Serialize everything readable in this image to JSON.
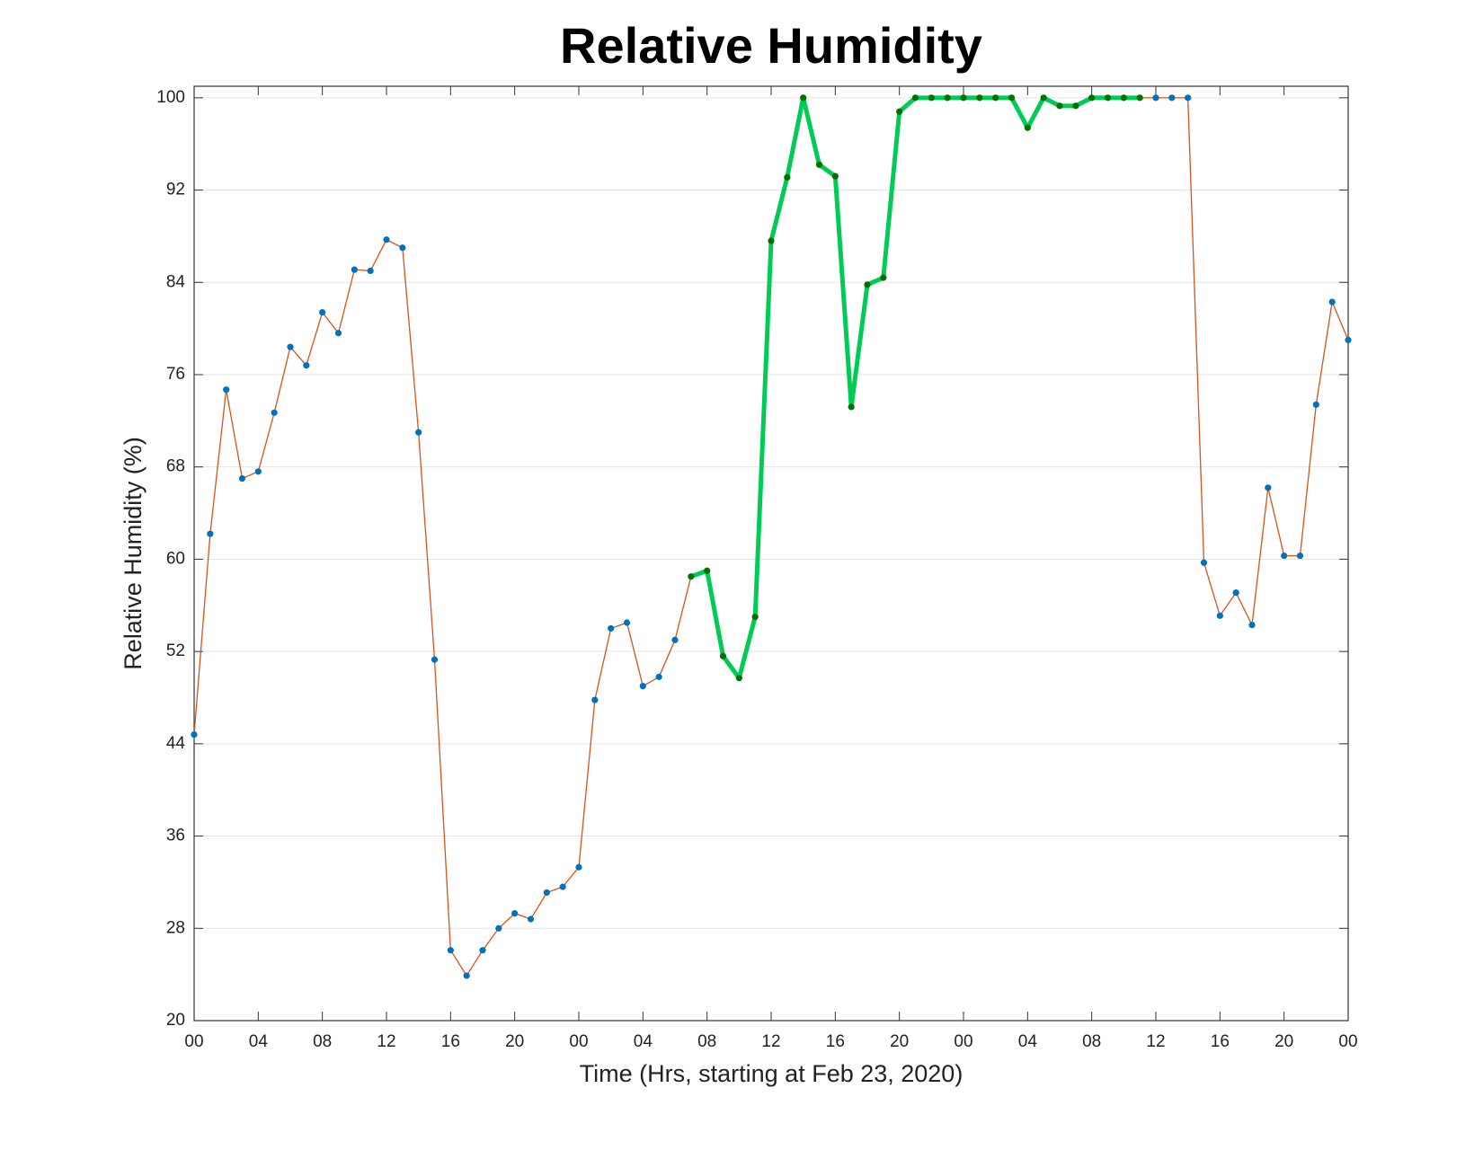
{
  "chart_data": {
    "type": "line",
    "title": "Relative Humidity",
    "xlabel": "Time (Hrs, starting at Feb 23, 2020)",
    "ylabel": "Relative Humidity (%)",
    "x": [
      0,
      1,
      2,
      3,
      4,
      5,
      6,
      7,
      8,
      9,
      10,
      11,
      12,
      13,
      14,
      15,
      16,
      17,
      18,
      19,
      20,
      21,
      22,
      23,
      24,
      25,
      26,
      27,
      28,
      29,
      30,
      31,
      32,
      33,
      34,
      35,
      36,
      37,
      38,
      39,
      40,
      41,
      42,
      43,
      44,
      45,
      46,
      47,
      48,
      49,
      50,
      51,
      52,
      53,
      54,
      55,
      56,
      57,
      58,
      59,
      60,
      61,
      62,
      63,
      64,
      65,
      66,
      67,
      68,
      69,
      70,
      71,
      72
    ],
    "values": [
      44.8,
      62.2,
      74.7,
      67.0,
      67.6,
      72.7,
      78.4,
      76.8,
      81.4,
      79.6,
      85.1,
      85.0,
      87.7,
      87.0,
      71.0,
      51.3,
      26.1,
      23.9,
      26.1,
      28.0,
      29.3,
      28.8,
      31.1,
      31.6,
      33.3,
      47.8,
      54.0,
      54.5,
      49.0,
      49.8,
      53.0,
      58.5,
      59.0,
      51.6,
      49.7,
      55.0,
      87.6,
      93.1,
      100,
      94.2,
      93.2,
      73.2,
      83.8,
      84.4,
      98.8,
      100,
      100,
      100,
      100,
      100,
      100,
      100,
      97.4,
      100,
      99.3,
      99.3,
      100,
      100,
      100,
      100,
      100,
      100,
      100,
      59.7,
      55.1,
      57.1,
      54.3,
      66.2,
      60.3,
      60.3,
      73.4,
      82.3,
      79.0
    ],
    "color": "#d95319",
    "marker_color": "#0072bd",
    "highlight_range": [
      31,
      59
    ],
    "highlight_color": "#00cc55",
    "highlight_marker_color": "#007000",
    "xlim": [
      0,
      72
    ],
    "ylim": [
      20,
      101
    ],
    "xticks": [
      {
        "value": 0,
        "label": "00"
      },
      {
        "value": 4,
        "label": "04"
      },
      {
        "value": 8,
        "label": "08"
      },
      {
        "value": 12,
        "label": "12"
      },
      {
        "value": 16,
        "label": "16"
      },
      {
        "value": 20,
        "label": "20"
      },
      {
        "value": 24,
        "label": "00"
      },
      {
        "value": 28,
        "label": "04"
      },
      {
        "value": 32,
        "label": "08"
      },
      {
        "value": 36,
        "label": "12"
      },
      {
        "value": 40,
        "label": "16"
      },
      {
        "value": 44,
        "label": "20"
      },
      {
        "value": 48,
        "label": "00"
      },
      {
        "value": 52,
        "label": "04"
      },
      {
        "value": 56,
        "label": "08"
      },
      {
        "value": 60,
        "label": "12"
      },
      {
        "value": 64,
        "label": "16"
      },
      {
        "value": 68,
        "label": "20"
      },
      {
        "value": 72,
        "label": "00"
      }
    ],
    "yticks": [
      20,
      28,
      36,
      44,
      52,
      60,
      68,
      76,
      84,
      92,
      100
    ],
    "grid": true
  }
}
